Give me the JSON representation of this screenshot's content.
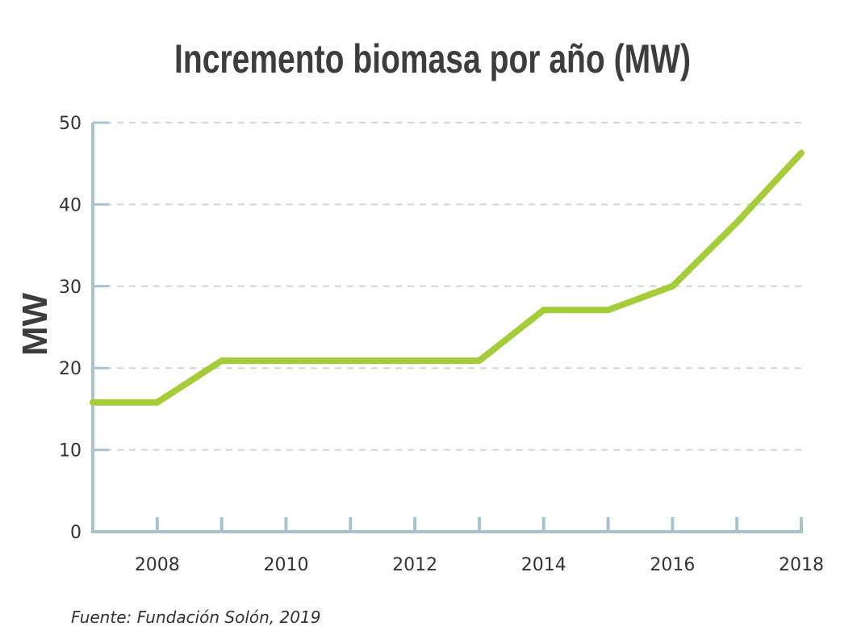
{
  "chart_data": {
    "type": "line",
    "title": "Incremento biomasa por año (MW)",
    "xlabel": "",
    "ylabel": "MW",
    "x": [
      2007,
      2008,
      2009,
      2010,
      2011,
      2012,
      2013,
      2014,
      2015,
      2016,
      2017,
      2018
    ],
    "x_tick_labels": [
      "2008",
      "2010",
      "2012",
      "2014",
      "2016",
      "2018"
    ],
    "x_tick_values": [
      2008,
      2010,
      2012,
      2014,
      2016,
      2018
    ],
    "xlim": [
      2007,
      2018
    ],
    "ylim": [
      0,
      50
    ],
    "y_ticks": [
      0,
      10,
      20,
      30,
      40,
      50
    ],
    "grid": true,
    "series": [
      {
        "name": "Biomasa",
        "values": [
          15.8,
          15.8,
          20.9,
          20.9,
          20.9,
          20.9,
          20.9,
          27.1,
          27.1,
          30.0,
          37.8,
          46.3
        ]
      }
    ],
    "source": "Fuente: Fundación Solón, 2019"
  },
  "colors": {
    "line": "#a5cd39",
    "axis": "#a7c3cd",
    "grid": "#cdd6da",
    "text": "#333333",
    "title": "#3d3d3d"
  }
}
